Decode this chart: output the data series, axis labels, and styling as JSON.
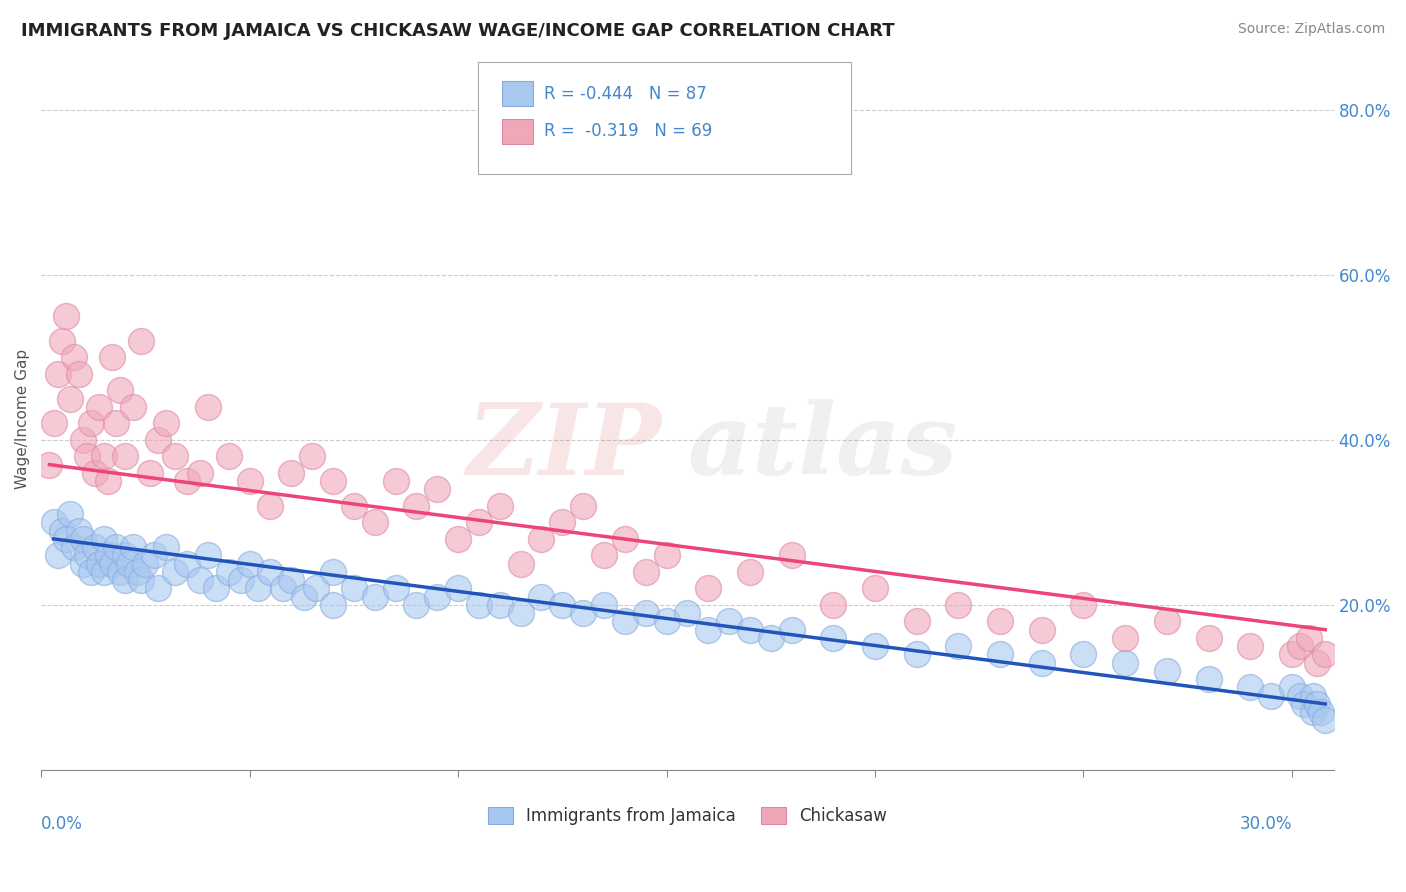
{
  "title": "IMMIGRANTS FROM JAMAICA VS CHICKASAW WAGE/INCOME GAP CORRELATION CHART",
  "source": "Source: ZipAtlas.com",
  "ylabel": "Wage/Income Gap",
  "legend_label1": "Immigrants from Jamaica",
  "legend_label2": "Chickasaw",
  "r1": "-0.444",
  "n1": "87",
  "r2": "-0.319",
  "n2": "69",
  "blue_color": "#a8c8f0",
  "pink_color": "#f0a8b8",
  "blue_line_color": "#2255bb",
  "pink_line_color": "#ee4477",
  "axis_label_color": "#4488cc",
  "grid_color": "#cccccc",
  "background_color": "#ffffff",
  "blue_scatter_x": [
    0.3,
    0.4,
    0.5,
    0.6,
    0.7,
    0.8,
    0.9,
    1.0,
    1.0,
    1.1,
    1.2,
    1.3,
    1.4,
    1.5,
    1.5,
    1.6,
    1.7,
    1.8,
    1.9,
    2.0,
    2.0,
    2.1,
    2.2,
    2.3,
    2.4,
    2.5,
    2.7,
    2.8,
    3.0,
    3.2,
    3.5,
    3.8,
    4.0,
    4.2,
    4.5,
    4.8,
    5.0,
    5.2,
    5.5,
    5.8,
    6.0,
    6.3,
    6.6,
    7.0,
    7.0,
    7.5,
    8.0,
    8.5,
    9.0,
    9.5,
    10.0,
    10.5,
    11.0,
    11.5,
    12.0,
    12.5,
    13.0,
    13.5,
    14.0,
    14.5,
    15.0,
    15.5,
    16.0,
    16.5,
    17.0,
    17.5,
    18.0,
    19.0,
    20.0,
    21.0,
    22.0,
    23.0,
    24.0,
    25.0,
    26.0,
    27.0,
    28.0,
    29.0,
    29.5,
    30.0,
    30.2,
    30.3,
    30.5,
    30.5,
    30.6,
    30.7,
    30.8
  ],
  "blue_scatter_y": [
    30,
    26,
    29,
    28,
    31,
    27,
    29,
    28,
    25,
    26,
    24,
    27,
    25,
    28,
    24,
    26,
    25,
    27,
    24,
    26,
    23,
    25,
    27,
    24,
    23,
    25,
    26,
    22,
    27,
    24,
    25,
    23,
    26,
    22,
    24,
    23,
    25,
    22,
    24,
    22,
    23,
    21,
    22,
    24,
    20,
    22,
    21,
    22,
    20,
    21,
    22,
    20,
    20,
    19,
    21,
    20,
    19,
    20,
    18,
    19,
    18,
    19,
    17,
    18,
    17,
    16,
    17,
    16,
    15,
    14,
    15,
    14,
    13,
    14,
    13,
    12,
    11,
    10,
    9,
    10,
    9,
    8,
    7,
    9,
    8,
    7,
    6
  ],
  "pink_scatter_x": [
    0.2,
    0.3,
    0.4,
    0.5,
    0.6,
    0.7,
    0.8,
    0.9,
    1.0,
    1.1,
    1.2,
    1.3,
    1.4,
    1.5,
    1.6,
    1.7,
    1.8,
    1.9,
    2.0,
    2.2,
    2.4,
    2.6,
    2.8,
    3.0,
    3.2,
    3.5,
    3.8,
    4.0,
    4.5,
    5.0,
    5.5,
    6.0,
    6.5,
    7.0,
    7.5,
    8.0,
    8.5,
    9.0,
    9.5,
    10.0,
    10.5,
    11.0,
    11.5,
    12.0,
    12.5,
    13.0,
    13.5,
    14.0,
    14.5,
    15.0,
    16.0,
    17.0,
    18.0,
    19.0,
    20.0,
    21.0,
    22.0,
    23.0,
    24.0,
    25.0,
    26.0,
    27.0,
    28.0,
    29.0,
    30.0,
    30.2,
    30.4,
    30.6,
    30.8
  ],
  "pink_scatter_y": [
    37,
    42,
    48,
    52,
    55,
    45,
    50,
    48,
    40,
    38,
    42,
    36,
    44,
    38,
    35,
    50,
    42,
    46,
    38,
    44,
    52,
    36,
    40,
    42,
    38,
    35,
    36,
    44,
    38,
    35,
    32,
    36,
    38,
    35,
    32,
    30,
    35,
    32,
    34,
    28,
    30,
    32,
    25,
    28,
    30,
    32,
    26,
    28,
    24,
    26,
    22,
    24,
    26,
    20,
    22,
    18,
    20,
    18,
    17,
    20,
    16,
    18,
    16,
    15,
    14,
    15,
    16,
    13,
    14
  ],
  "x_min": 0.0,
  "x_max": 31.0,
  "y_min": 0,
  "y_max": 85
}
